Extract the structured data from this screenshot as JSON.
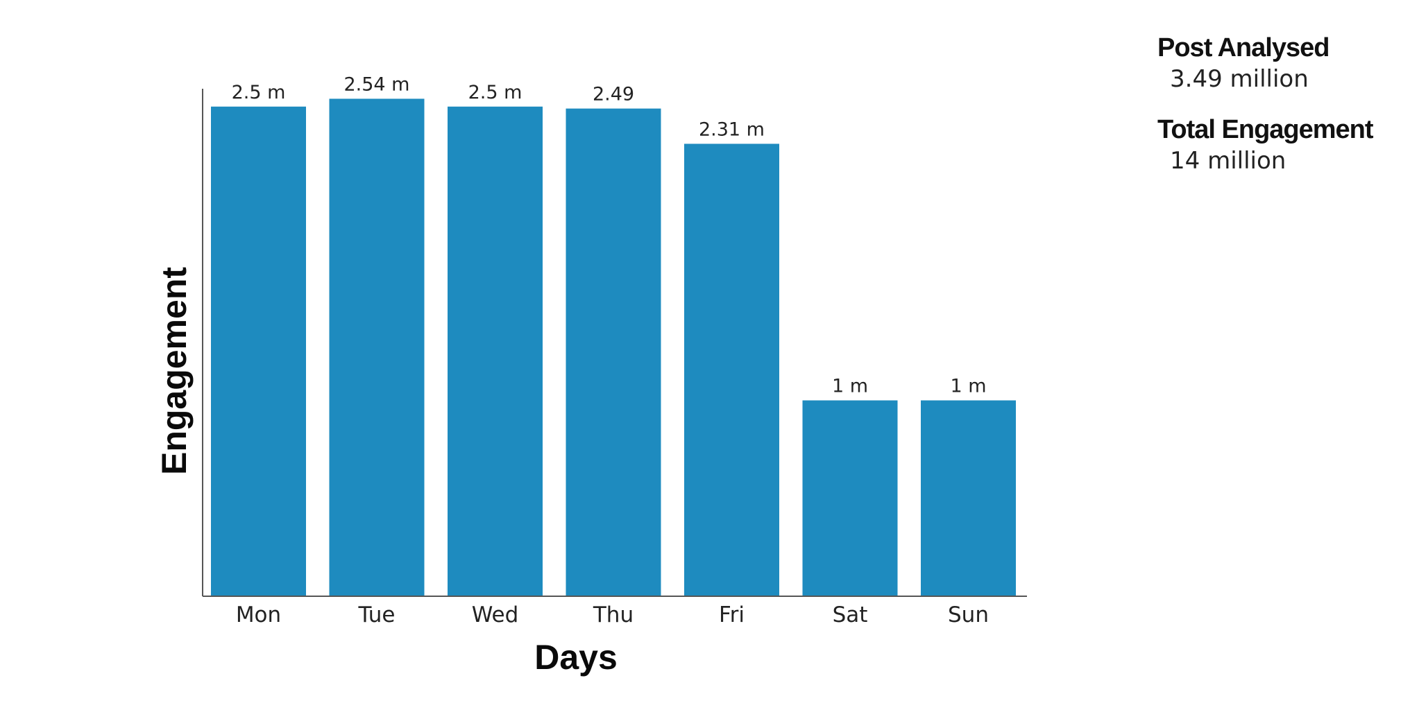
{
  "chart_data": {
    "type": "bar",
    "xlabel": "Days",
    "ylabel": "Engagement",
    "categories": [
      "Mon",
      "Tue",
      "Wed",
      "Thu",
      "Fri",
      "Sat",
      "Sun"
    ],
    "values": [
      2.5,
      2.54,
      2.5,
      2.49,
      2.31,
      1,
      1
    ],
    "value_labels": [
      "2.5 m",
      "2.54 m",
      "2.5 m",
      "2.49",
      "2.31 m",
      "1 m",
      "1 m"
    ],
    "units": "million",
    "bar_color": "#1e8bbf",
    "grid": false,
    "legend": "none"
  },
  "stats": {
    "post_analysed_label": "Post Analysed",
    "post_analysed_value": "3.49 million",
    "total_engagement_label": "Total Engagement",
    "total_engagement_value": "14 million"
  }
}
